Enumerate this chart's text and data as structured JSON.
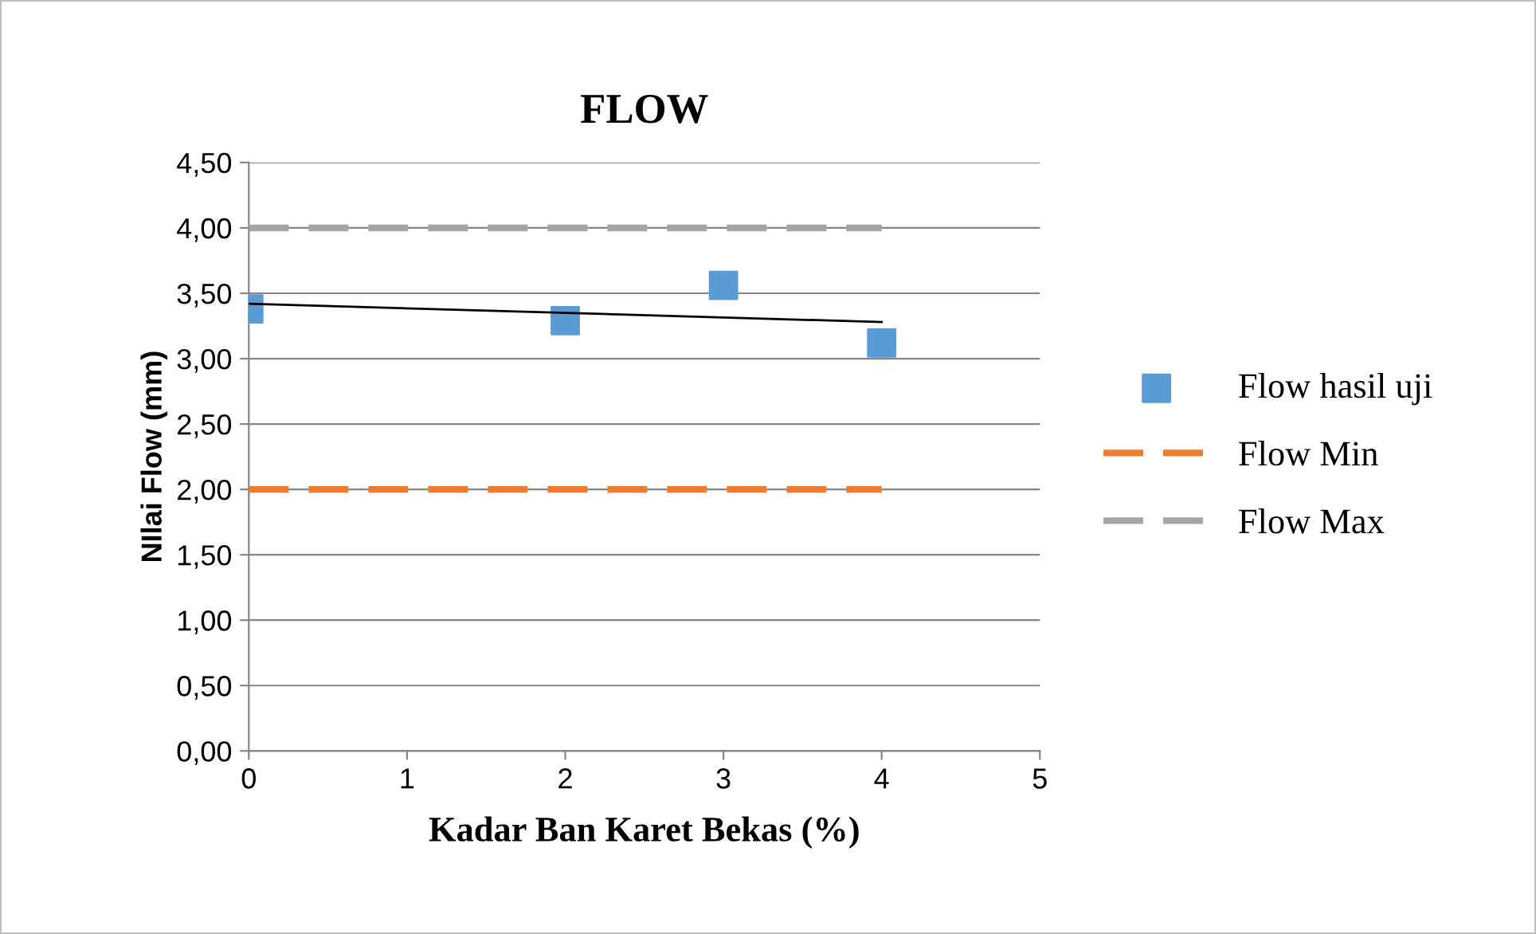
{
  "chart_data": {
    "type": "scatter",
    "title": "FLOW",
    "xlabel": "Kadar Ban Karet Bekas (%)",
    "ylabel": "NIlai Flow (mm)",
    "series": [
      {
        "name": "Flow hasil uji",
        "color": "#5b9bd5",
        "marker": "square",
        "x": [
          0,
          2,
          3,
          4
        ],
        "values": [
          3.38,
          3.29,
          3.56,
          3.12
        ]
      },
      {
        "name": "Flow Min",
        "type": "line",
        "color": "#ed7d31",
        "line_style": "dashed",
        "x": [
          0,
          4
        ],
        "values": [
          2,
          2
        ]
      },
      {
        "name": "Flow Max",
        "type": "line",
        "color": "#a5a5a5",
        "line_style": "dashed",
        "x": [
          0,
          4
        ],
        "values": [
          4,
          4
        ]
      },
      {
        "type": "line",
        "color": "#000000",
        "line_style": "solid",
        "x": [
          0,
          4
        ],
        "values": [
          3.42,
          3.28
        ]
      }
    ],
    "xlim": [
      0,
      5
    ],
    "xticks": [
      0,
      1,
      2,
      3,
      4,
      5
    ],
    "ylim": [
      0,
      4.5
    ],
    "yticks": [
      {
        "value": 0,
        "label": "0,00"
      },
      {
        "value": 0.5,
        "label": "0,50"
      },
      {
        "value": 1,
        "label": "1,00"
      },
      {
        "value": 1.5,
        "label": "1,50"
      },
      {
        "value": 2,
        "label": "2,00"
      },
      {
        "value": 2.5,
        "label": "2,50"
      },
      {
        "value": 3,
        "label": "3,00"
      },
      {
        "value": 3.5,
        "label": "3,50"
      },
      {
        "value": 4,
        "label": "4,00"
      },
      {
        "value": 4.5,
        "label": "4,50"
      }
    ],
    "grid": "y",
    "legend": "right"
  }
}
